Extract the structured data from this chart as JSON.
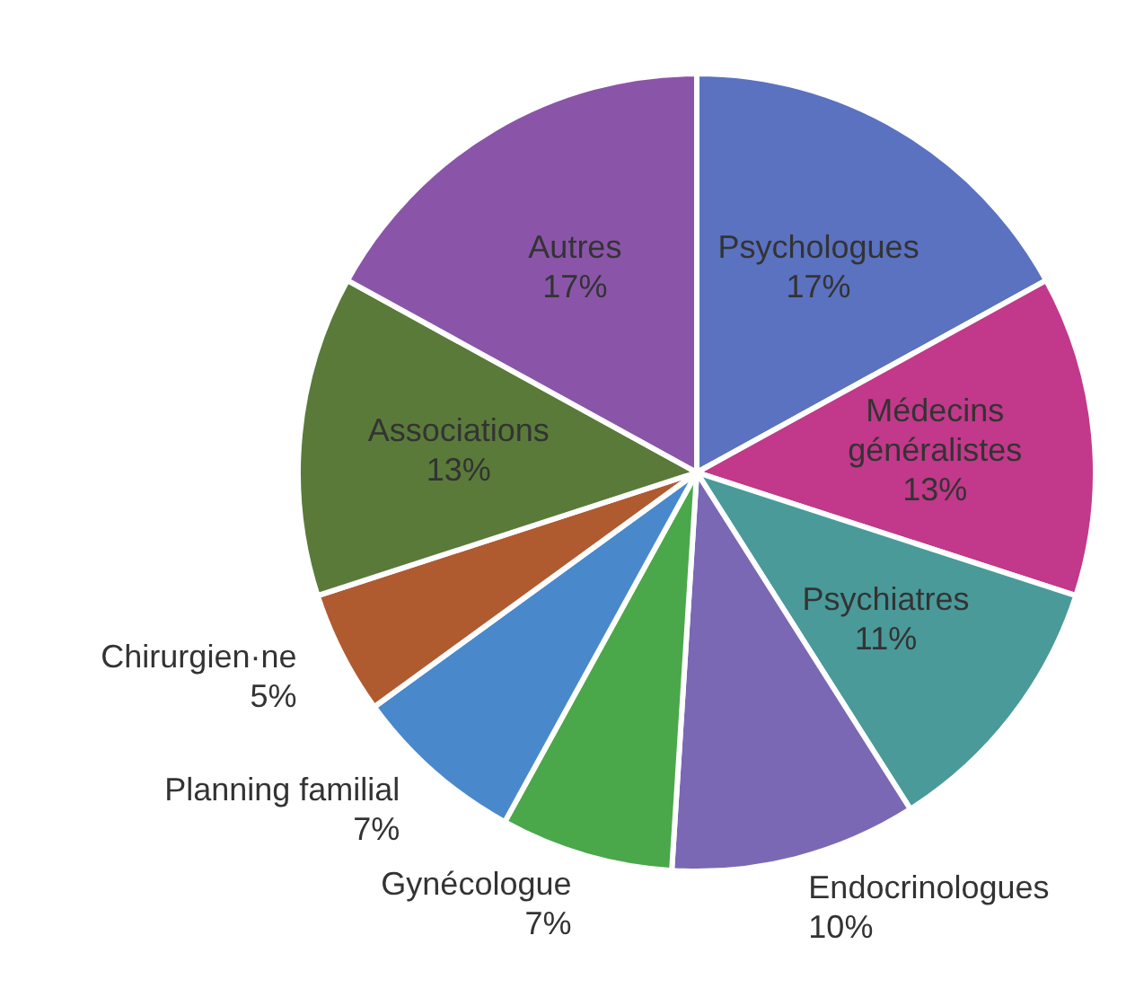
{
  "chart_data": {
    "type": "pie",
    "categories": [
      "Psychologues",
      "Médecins généralistes",
      "Psychiatres",
      "Endocrinologues",
      "Gynécologue",
      "Planning familial",
      "Chirurgien·ne",
      "Associations",
      "Autres"
    ],
    "values": [
      17,
      13,
      11,
      10,
      7,
      7,
      5,
      13,
      17
    ],
    "value_labels": [
      "17%",
      "13%",
      "11%",
      "10%",
      "7%",
      "7%",
      "5%",
      "13%",
      "17%"
    ],
    "colors": [
      "#5a72c0",
      "#c2388a",
      "#4a9a9a",
      "#7a68b4",
      "#4aa84a",
      "#4a88cc",
      "#b05a30",
      "#5a7a3a",
      "#8a55a8"
    ],
    "legend": false
  }
}
